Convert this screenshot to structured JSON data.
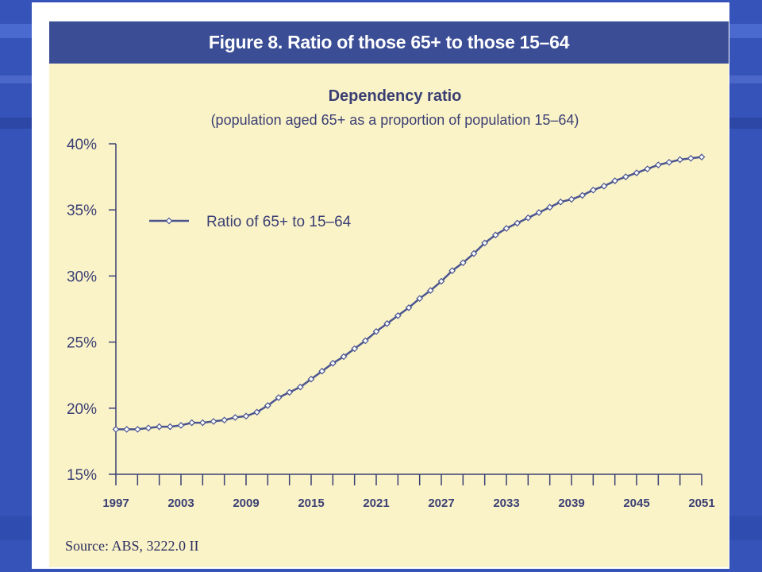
{
  "slide": {
    "figure_title": "Figure 8. Ratio of those 65+ to those 15–64",
    "source": "Source: ABS, 3222.0 II"
  },
  "colors": {
    "slide_background": "#3553b8",
    "header_background": "#3a4d95",
    "plot_background": "#fbf3c8",
    "series_line": "#4a558f",
    "text": "#3a3f73"
  },
  "chart_data": {
    "type": "line",
    "title": "Dependency ratio",
    "subtitle": "(population aged 65+ as a proportion of population 15–64)",
    "xlabel": "",
    "ylabel": "",
    "xlim": [
      1997,
      2051
    ],
    "ylim": [
      15,
      40
    ],
    "y_ticks": [
      15,
      20,
      25,
      30,
      35,
      40
    ],
    "y_tick_labels": [
      "15%",
      "20%",
      "25%",
      "30%",
      "35%",
      "40%"
    ],
    "x_tick_labels": [
      "1997",
      "2003",
      "2009",
      "2015",
      "2021",
      "2027",
      "2033",
      "2039",
      "2045",
      "2051"
    ],
    "x_tick_values": [
      1997,
      2003,
      2009,
      2015,
      2021,
      2027,
      2033,
      2039,
      2045,
      2051
    ],
    "grid": false,
    "legend_position": "top-left",
    "series": [
      {
        "name": "Ratio of 65+ to 15–64",
        "marker": "diamond",
        "x": [
          1997,
          1998,
          1999,
          2000,
          2001,
          2002,
          2003,
          2004,
          2005,
          2006,
          2007,
          2008,
          2009,
          2010,
          2011,
          2012,
          2013,
          2014,
          2015,
          2016,
          2017,
          2018,
          2019,
          2020,
          2021,
          2022,
          2023,
          2024,
          2025,
          2026,
          2027,
          2028,
          2029,
          2030,
          2031,
          2032,
          2033,
          2034,
          2035,
          2036,
          2037,
          2038,
          2039,
          2040,
          2041,
          2042,
          2043,
          2044,
          2045,
          2046,
          2047,
          2048,
          2049,
          2050,
          2051
        ],
        "values": [
          18.4,
          18.4,
          18.4,
          18.5,
          18.6,
          18.6,
          18.7,
          18.9,
          18.9,
          19.0,
          19.1,
          19.3,
          19.4,
          19.7,
          20.2,
          20.8,
          21.2,
          21.6,
          22.2,
          22.8,
          23.4,
          23.9,
          24.5,
          25.1,
          25.8,
          26.4,
          27.0,
          27.6,
          28.3,
          28.9,
          29.6,
          30.4,
          31.0,
          31.7,
          32.5,
          33.1,
          33.6,
          34.0,
          34.4,
          34.8,
          35.2,
          35.6,
          35.8,
          36.1,
          36.5,
          36.8,
          37.2,
          37.5,
          37.8,
          38.1,
          38.4,
          38.6,
          38.8,
          38.9,
          39.0
        ]
      }
    ]
  }
}
